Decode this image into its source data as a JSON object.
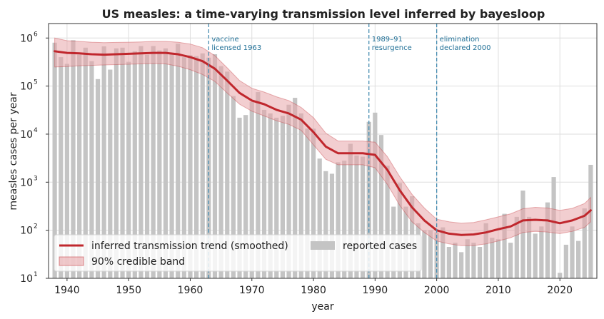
{
  "chart_data": {
    "type": "bar",
    "title": "US measles: a time-varying transmission level inferred by bayesloop",
    "xlabel": "year",
    "ylabel": "measles cases per year",
    "yscale": "log",
    "xlim": [
      1937,
      2026
    ],
    "ylim": [
      10,
      2000000
    ],
    "xticks": [
      1940,
      1950,
      1960,
      1970,
      1980,
      1990,
      2000,
      2010,
      2020
    ],
    "yticks": [
      {
        "value": 10,
        "base": "10",
        "exp": "1"
      },
      {
        "value": 100,
        "base": "10",
        "exp": "2"
      },
      {
        "value": 1000,
        "base": "10",
        "exp": "3"
      },
      {
        "value": 10000,
        "base": "10",
        "exp": "4"
      },
      {
        "value": 100000,
        "base": "10",
        "exp": "5"
      },
      {
        "value": 1000000,
        "base": "10",
        "exp": "6"
      }
    ],
    "grid": true,
    "legend_position": "lower-left",
    "colors": {
      "bars": "#c4c4c4",
      "trend": "#c0272d",
      "band": "#e8a6aa",
      "annotation": "#4a8fb3",
      "annotation_text": "#1f6f96"
    },
    "series": [
      {
        "name": "reported cases",
        "kind": "bar",
        "x": [
          1938,
          1939,
          1940,
          1941,
          1942,
          1943,
          1944,
          1945,
          1946,
          1947,
          1948,
          1949,
          1950,
          1951,
          1952,
          1953,
          1954,
          1955,
          1956,
          1957,
          1958,
          1959,
          1960,
          1961,
          1962,
          1963,
          1964,
          1965,
          1966,
          1967,
          1968,
          1969,
          1970,
          1971,
          1972,
          1973,
          1974,
          1975,
          1976,
          1977,
          1978,
          1979,
          1980,
          1981,
          1982,
          1983,
          1984,
          1985,
          1986,
          1987,
          1988,
          1989,
          1990,
          1991,
          1992,
          1993,
          1994,
          1995,
          1996,
          1997,
          1998,
          1999,
          2000,
          2001,
          2002,
          2003,
          2004,
          2005,
          2006,
          2007,
          2008,
          2009,
          2010,
          2011,
          2012,
          2013,
          2014,
          2015,
          2016,
          2017,
          2018,
          2019,
          2020,
          2021,
          2022,
          2023,
          2024,
          2025
        ],
        "values": [
          800000,
          400000,
          290000,
          900000,
          450000,
          630000,
          330000,
          140000,
          670000,
          220000,
          610000,
          630000,
          320000,
          530000,
          680000,
          450000,
          680000,
          550000,
          610000,
          490000,
          760000,
          400000,
          440000,
          420000,
          480000,
          390000,
          460000,
          260000,
          200000,
          62000,
          22000,
          25000,
          47000,
          75000,
          32000,
          27000,
          22000,
          24000,
          41000,
          57000,
          27000,
          13000,
          13000,
          3100,
          1700,
          1500,
          2600,
          2800,
          6300,
          3600,
          3400,
          18000,
          28000,
          9600,
          2200,
          310,
          960,
          310,
          510,
          140,
          100,
          100,
          90,
          115,
          45,
          55,
          35,
          65,
          55,
          45,
          140,
          70,
          65,
          220,
          55,
          190,
          670,
          190,
          85,
          120,
          380,
          1280,
          13,
          50,
          120,
          60,
          285,
          2300
        ]
      },
      {
        "name": "inferred transmission trend (smoothed)",
        "kind": "line",
        "x": [
          1938,
          1940,
          1942,
          1944,
          1946,
          1948,
          1950,
          1952,
          1954,
          1956,
          1958,
          1960,
          1962,
          1964,
          1966,
          1968,
          1970,
          1972,
          1974,
          1976,
          1978,
          1980,
          1982,
          1984,
          1986,
          1988,
          1990,
          1992,
          1994,
          1996,
          1998,
          2000,
          2002,
          2004,
          2006,
          2008,
          2010,
          2012,
          2014,
          2016,
          2018,
          2020,
          2022,
          2024,
          2025
        ],
        "values": [
          530000,
          490000,
          480000,
          460000,
          450000,
          460000,
          470000,
          480000,
          490000,
          490000,
          460000,
          400000,
          330000,
          230000,
          130000,
          72000,
          50000,
          42000,
          32000,
          27000,
          20000,
          11000,
          5500,
          4000,
          4000,
          4000,
          3700,
          1800,
          680,
          300,
          160,
          100,
          85,
          80,
          82,
          90,
          105,
          120,
          160,
          165,
          160,
          140,
          160,
          200,
          260
        ]
      },
      {
        "name": "90% credible band",
        "kind": "band",
        "x": [
          1938,
          1940,
          1942,
          1944,
          1946,
          1948,
          1950,
          1952,
          1954,
          1956,
          1958,
          1960,
          1962,
          1964,
          1966,
          1968,
          1970,
          1972,
          1974,
          1976,
          1978,
          1980,
          1982,
          1984,
          1986,
          1988,
          1990,
          1992,
          1994,
          1996,
          1998,
          2000,
          2002,
          2004,
          2006,
          2008,
          2010,
          2012,
          2014,
          2016,
          2018,
          2020,
          2022,
          2024,
          2025
        ],
        "lower": [
          250000,
          255000,
          265000,
          270000,
          275000,
          280000,
          285000,
          290000,
          295000,
          290000,
          260000,
          220000,
          175000,
          125000,
          72000,
          42000,
          30000,
          24000,
          19000,
          16000,
          12000,
          6000,
          3000,
          2300,
          2300,
          2300,
          2000,
          900,
          330,
          150,
          90,
          60,
          52,
          48,
          48,
          52,
          60,
          70,
          90,
          95,
          92,
          85,
          95,
          115,
          150
        ],
        "upper": [
          1000000,
          880000,
          850000,
          820000,
          800000,
          810000,
          820000,
          830000,
          850000,
          850000,
          820000,
          750000,
          630000,
          430000,
          240000,
          130000,
          90000,
          75000,
          60000,
          50000,
          36000,
          22000,
          10500,
          7200,
          7200,
          7200,
          6800,
          3400,
          1300,
          560,
          290,
          170,
          150,
          140,
          145,
          165,
          190,
          220,
          280,
          300,
          290,
          260,
          285,
          360,
          480
        ]
      }
    ],
    "annotations": [
      {
        "x": 1963,
        "lines": [
          "vaccine",
          "licensed 1963"
        ]
      },
      {
        "x": 1989,
        "lines": [
          "1989–91",
          "resurgence"
        ]
      },
      {
        "x": 2000,
        "lines": [
          "elimination",
          "declared 2000"
        ]
      }
    ]
  }
}
